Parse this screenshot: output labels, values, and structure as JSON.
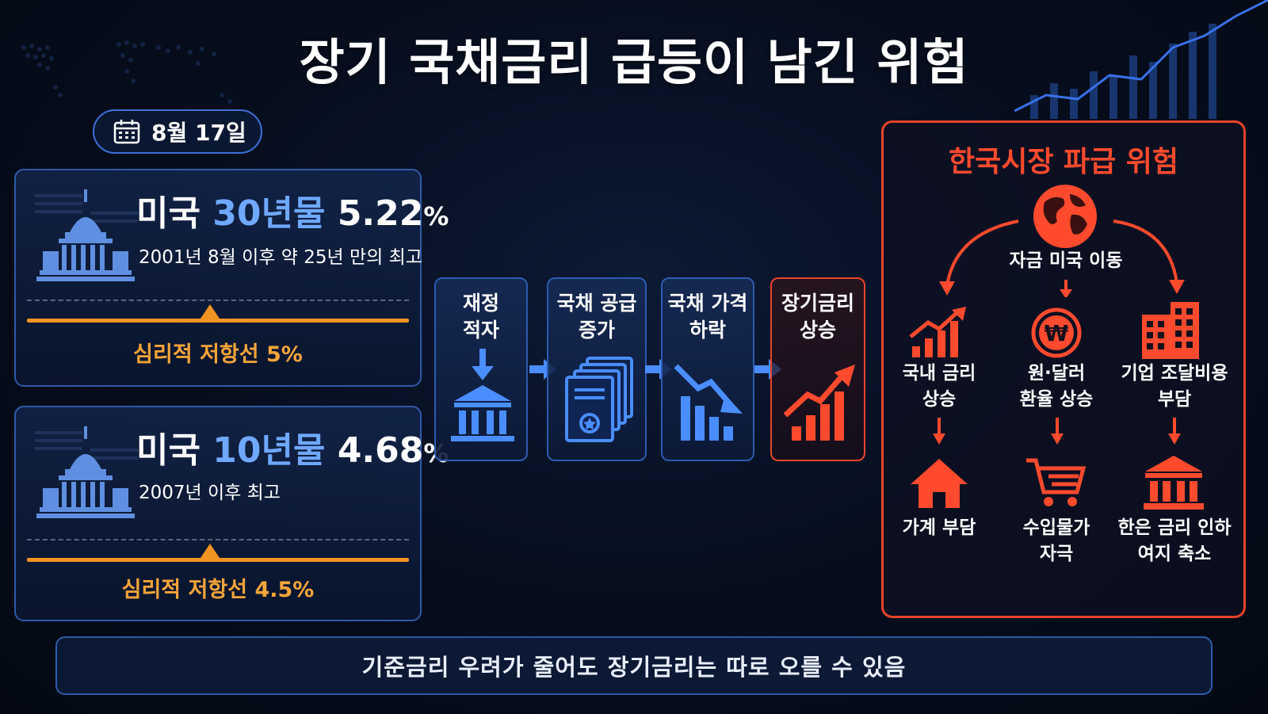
{
  "title": "장기 국채금리 급등이 남긴 위험",
  "date": {
    "label": "8월 17일"
  },
  "cards": [
    {
      "prefix": "미국 ",
      "term": "30년물",
      "rate": "5.22",
      "pct": "%",
      "sub": "2001년 8월 이후 약 25년 만의 최고",
      "resistance": "심리적 저항선 5%"
    },
    {
      "prefix": "미국 ",
      "term": "10년물",
      "rate": "4.68",
      "pct": "%",
      "sub": "2007년 이후 최고",
      "resistance": "심리적 저항선 4.5%"
    }
  ],
  "flow": [
    {
      "line1": "재정",
      "line2": "적자",
      "icon": "bank-down-icon"
    },
    {
      "line1": "국채 공급",
      "line2": "증가",
      "icon": "bond-documents-icon"
    },
    {
      "line1": "국채 가격",
      "line2": "하락",
      "icon": "falling-chart-icon"
    },
    {
      "line1": "장기금리",
      "line2": "상승",
      "icon": "rising-chart-icon"
    }
  ],
  "korea": {
    "title": "한국시장 파급 위험",
    "center": "자금 미국 이동",
    "columns": [
      {
        "top1": "국내 금리",
        "top2": "상승",
        "bottom1": "가계 부담",
        "bottom2": ""
      },
      {
        "top1": "원·달러",
        "top2": "환율 상승",
        "bottom1": "수입물가",
        "bottom2": "자극"
      },
      {
        "top1": "기업 조달비용",
        "top2": "부담",
        "bottom1": "한은 금리 인하",
        "bottom2": "여지 축소"
      }
    ]
  },
  "footer": "기준금리 우려가 줄어도 장기금리는 따로 오를 수 있음",
  "colors": {
    "accent_blue": "#6fa8ff",
    "accent_orange": "#f29423",
    "accent_red": "#e8442c",
    "border_blue": "#2f5aa8"
  }
}
